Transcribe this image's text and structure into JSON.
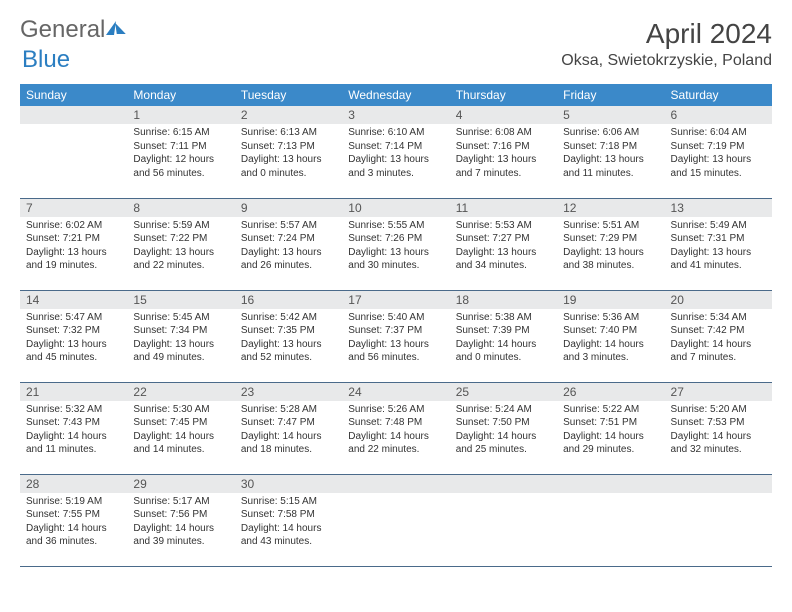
{
  "logo": {
    "part1": "General",
    "part2": "Blue"
  },
  "title": "April 2024",
  "location": "Oksa, Swietokrzyskie, Poland",
  "day_headers": [
    "Sunday",
    "Monday",
    "Tuesday",
    "Wednesday",
    "Thursday",
    "Friday",
    "Saturday"
  ],
  "colors": {
    "header_bg": "#3b89c9",
    "header_text": "#ffffff",
    "daynum_bg": "#e8e9ea",
    "cell_border": "#4a6a8a",
    "logo_accent": "#2b7ec1"
  },
  "weeks": [
    [
      {
        "n": "",
        "lines": []
      },
      {
        "n": "1",
        "lines": [
          "Sunrise: 6:15 AM",
          "Sunset: 7:11 PM",
          "Daylight: 12 hours",
          "and 56 minutes."
        ]
      },
      {
        "n": "2",
        "lines": [
          "Sunrise: 6:13 AM",
          "Sunset: 7:13 PM",
          "Daylight: 13 hours",
          "and 0 minutes."
        ]
      },
      {
        "n": "3",
        "lines": [
          "Sunrise: 6:10 AM",
          "Sunset: 7:14 PM",
          "Daylight: 13 hours",
          "and 3 minutes."
        ]
      },
      {
        "n": "4",
        "lines": [
          "Sunrise: 6:08 AM",
          "Sunset: 7:16 PM",
          "Daylight: 13 hours",
          "and 7 minutes."
        ]
      },
      {
        "n": "5",
        "lines": [
          "Sunrise: 6:06 AM",
          "Sunset: 7:18 PM",
          "Daylight: 13 hours",
          "and 11 minutes."
        ]
      },
      {
        "n": "6",
        "lines": [
          "Sunrise: 6:04 AM",
          "Sunset: 7:19 PM",
          "Daylight: 13 hours",
          "and 15 minutes."
        ]
      }
    ],
    [
      {
        "n": "7",
        "lines": [
          "Sunrise: 6:02 AM",
          "Sunset: 7:21 PM",
          "Daylight: 13 hours",
          "and 19 minutes."
        ]
      },
      {
        "n": "8",
        "lines": [
          "Sunrise: 5:59 AM",
          "Sunset: 7:22 PM",
          "Daylight: 13 hours",
          "and 22 minutes."
        ]
      },
      {
        "n": "9",
        "lines": [
          "Sunrise: 5:57 AM",
          "Sunset: 7:24 PM",
          "Daylight: 13 hours",
          "and 26 minutes."
        ]
      },
      {
        "n": "10",
        "lines": [
          "Sunrise: 5:55 AM",
          "Sunset: 7:26 PM",
          "Daylight: 13 hours",
          "and 30 minutes."
        ]
      },
      {
        "n": "11",
        "lines": [
          "Sunrise: 5:53 AM",
          "Sunset: 7:27 PM",
          "Daylight: 13 hours",
          "and 34 minutes."
        ]
      },
      {
        "n": "12",
        "lines": [
          "Sunrise: 5:51 AM",
          "Sunset: 7:29 PM",
          "Daylight: 13 hours",
          "and 38 minutes."
        ]
      },
      {
        "n": "13",
        "lines": [
          "Sunrise: 5:49 AM",
          "Sunset: 7:31 PM",
          "Daylight: 13 hours",
          "and 41 minutes."
        ]
      }
    ],
    [
      {
        "n": "14",
        "lines": [
          "Sunrise: 5:47 AM",
          "Sunset: 7:32 PM",
          "Daylight: 13 hours",
          "and 45 minutes."
        ]
      },
      {
        "n": "15",
        "lines": [
          "Sunrise: 5:45 AM",
          "Sunset: 7:34 PM",
          "Daylight: 13 hours",
          "and 49 minutes."
        ]
      },
      {
        "n": "16",
        "lines": [
          "Sunrise: 5:42 AM",
          "Sunset: 7:35 PM",
          "Daylight: 13 hours",
          "and 52 minutes."
        ]
      },
      {
        "n": "17",
        "lines": [
          "Sunrise: 5:40 AM",
          "Sunset: 7:37 PM",
          "Daylight: 13 hours",
          "and 56 minutes."
        ]
      },
      {
        "n": "18",
        "lines": [
          "Sunrise: 5:38 AM",
          "Sunset: 7:39 PM",
          "Daylight: 14 hours",
          "and 0 minutes."
        ]
      },
      {
        "n": "19",
        "lines": [
          "Sunrise: 5:36 AM",
          "Sunset: 7:40 PM",
          "Daylight: 14 hours",
          "and 3 minutes."
        ]
      },
      {
        "n": "20",
        "lines": [
          "Sunrise: 5:34 AM",
          "Sunset: 7:42 PM",
          "Daylight: 14 hours",
          "and 7 minutes."
        ]
      }
    ],
    [
      {
        "n": "21",
        "lines": [
          "Sunrise: 5:32 AM",
          "Sunset: 7:43 PM",
          "Daylight: 14 hours",
          "and 11 minutes."
        ]
      },
      {
        "n": "22",
        "lines": [
          "Sunrise: 5:30 AM",
          "Sunset: 7:45 PM",
          "Daylight: 14 hours",
          "and 14 minutes."
        ]
      },
      {
        "n": "23",
        "lines": [
          "Sunrise: 5:28 AM",
          "Sunset: 7:47 PM",
          "Daylight: 14 hours",
          "and 18 minutes."
        ]
      },
      {
        "n": "24",
        "lines": [
          "Sunrise: 5:26 AM",
          "Sunset: 7:48 PM",
          "Daylight: 14 hours",
          "and 22 minutes."
        ]
      },
      {
        "n": "25",
        "lines": [
          "Sunrise: 5:24 AM",
          "Sunset: 7:50 PM",
          "Daylight: 14 hours",
          "and 25 minutes."
        ]
      },
      {
        "n": "26",
        "lines": [
          "Sunrise: 5:22 AM",
          "Sunset: 7:51 PM",
          "Daylight: 14 hours",
          "and 29 minutes."
        ]
      },
      {
        "n": "27",
        "lines": [
          "Sunrise: 5:20 AM",
          "Sunset: 7:53 PM",
          "Daylight: 14 hours",
          "and 32 minutes."
        ]
      }
    ],
    [
      {
        "n": "28",
        "lines": [
          "Sunrise: 5:19 AM",
          "Sunset: 7:55 PM",
          "Daylight: 14 hours",
          "and 36 minutes."
        ]
      },
      {
        "n": "29",
        "lines": [
          "Sunrise: 5:17 AM",
          "Sunset: 7:56 PM",
          "Daylight: 14 hours",
          "and 39 minutes."
        ]
      },
      {
        "n": "30",
        "lines": [
          "Sunrise: 5:15 AM",
          "Sunset: 7:58 PM",
          "Daylight: 14 hours",
          "and 43 minutes."
        ]
      },
      {
        "n": "",
        "lines": []
      },
      {
        "n": "",
        "lines": []
      },
      {
        "n": "",
        "lines": []
      },
      {
        "n": "",
        "lines": []
      }
    ]
  ]
}
